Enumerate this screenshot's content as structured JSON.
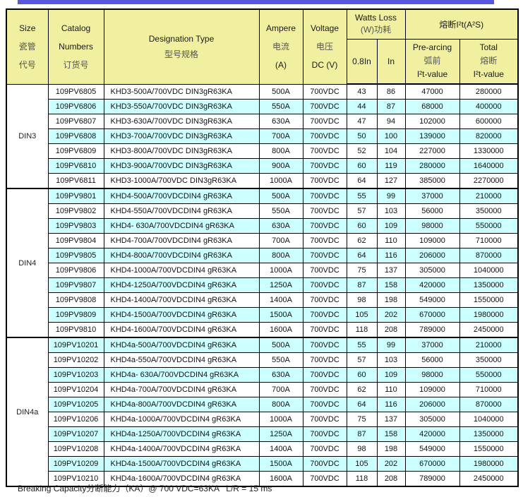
{
  "colors": {
    "accent_bar": "#5757E0",
    "header_bg": "#F0F0A0",
    "row_stripe": "#CCFFFF",
    "border": "#000000"
  },
  "header": {
    "size": [
      "Size",
      "瓷管",
      "代号"
    ],
    "catalog": [
      "Catalog",
      "Numbers",
      "订货号"
    ],
    "designation": [
      "Designation Type",
      "型号规格"
    ],
    "ampere": [
      "Ampere",
      "电流",
      "(A)"
    ],
    "voltage": [
      "Voltage",
      "电压",
      "DC (V)"
    ],
    "watts_loss": [
      "Watts Loss",
      "(W)功耗"
    ],
    "i2t_title": "熔断I²t(A²S)",
    "watts_sub": [
      "0.8In",
      "In"
    ],
    "prearcing": [
      "Pre-arcing",
      "弧前",
      "I²t-value"
    ],
    "total": [
      "Total",
      "熔断",
      "I²t-value"
    ]
  },
  "table": {
    "groups": [
      {
        "size": "DIN3",
        "rows": [
          [
            "109PV6805",
            "KHD3-500A/700VDC DIN3gR63KA",
            "500A",
            "700VDC",
            "43",
            "86",
            "47000",
            "280000"
          ],
          [
            "109PV6806",
            "KHD3-550A/700VDC DIN3gR63KA",
            "550A",
            "700VDC",
            "44",
            "87",
            "68000",
            "400000"
          ],
          [
            "109PV6807",
            "KHD3-630A/700VDC DIN3gR63KA",
            "630A",
            "700VDC",
            "47",
            "94",
            "102000",
            "600000"
          ],
          [
            "109PV6808",
            "KHD3-700A/700VDC DIN3gR63KA",
            "700A",
            "700VDC",
            "50",
            "100",
            "139000",
            "820000"
          ],
          [
            "109PV6809",
            "KHD3-800A/700VDC DIN3gR63KA",
            "800A",
            "700VDC",
            "52",
            "104",
            "227000",
            "1330000"
          ],
          [
            "109PV6810",
            "KHD3-900A/700VDC DIN3gR63KA",
            "900A",
            "700VDC",
            "60",
            "119",
            "280000",
            "1640000"
          ],
          [
            "109PV6811",
            "KHD3-1000A/700VDC DIN3gR63KA",
            "1000A",
            "700VDC",
            "64",
            "127",
            "385000",
            "2270000"
          ]
        ]
      },
      {
        "size": "DIN4",
        "rows": [
          [
            "109PV9801",
            "KHD4-500A/700VDCDIN4 gR63KA",
            "500A",
            "700VDC",
            "55",
            "99",
            "37000",
            "210000"
          ],
          [
            "109PV9802",
            "KHD4-550A/700VDCDIN4 gR63KA",
            "550A",
            "700VDC",
            "57",
            "103",
            "56000",
            "350000"
          ],
          [
            "109PV9803",
            "KHD4- 630A/700VDCDIN4 gR63KA",
            "630A",
            "700VDC",
            "60",
            "109",
            "98000",
            "550000"
          ],
          [
            "109PV9804",
            "KHD4-700A/700VDCDIN4 gR63KA",
            "700A",
            "700VDC",
            "62",
            "110",
            "109000",
            "710000"
          ],
          [
            "109PV9805",
            "KHD4-800A/700VDCDIN4 gR63KA",
            "800A",
            "700VDC",
            "64",
            "116",
            "206000",
            "870000"
          ],
          [
            "109PV9806",
            "KHD4-1000A/700VDCDIN4 gR63KA",
            "1000A",
            "700VDC",
            "75",
            "137",
            "305000",
            "1040000"
          ],
          [
            "109PV9807",
            "KHD4-1250A/700VDCDIN4 gR63KA",
            "1250A",
            "700VDC",
            "87",
            "158",
            "420000",
            "1350000"
          ],
          [
            "109PV9808",
            "KHD4-1400A/700VDCDIN4 gR63KA",
            "1400A",
            "700VDC",
            "98",
            "198",
            "549000",
            "1550000"
          ],
          [
            "109PV9809",
            "KHD4-1500A/700VDCDIN4 gR63KA",
            "1500A",
            "700VDC",
            "105",
            "202",
            "670000",
            "1980000"
          ],
          [
            "109PV9810",
            "KHD4-1600A/700VDCDIN4 gR63KA",
            "1600A",
            "700VDC",
            "118",
            "208",
            "789000",
            "2450000"
          ]
        ]
      },
      {
        "size": "DIN4a",
        "rows": [
          [
            "109PV10201",
            "KHD4a-500A/700VDCDIN4 gR63KA",
            "500A",
            "700VDC",
            "55",
            "99",
            "37000",
            "210000"
          ],
          [
            "109PV10202",
            "KHD4a-550A/700VDCDIN4 gR63KA",
            "550A",
            "700VDC",
            "57",
            "103",
            "56000",
            "350000"
          ],
          [
            "109PV10203",
            "KHD4a- 630A/700VDCDIN4 gR63KA",
            "630A",
            "700VDC",
            "60",
            "109",
            "98000",
            "550000"
          ],
          [
            "109PV10204",
            "KHD4a-700A/700VDCDIN4 gR63KA",
            "700A",
            "700VDC",
            "62",
            "110",
            "109000",
            "710000"
          ],
          [
            "109PV10205",
            "KHD4a-800A/700VDCDIN4 gR63KA",
            "800A",
            "700VDC",
            "64",
            "116",
            "206000",
            "870000"
          ],
          [
            "109PV10206",
            "KHD4a-1000A/700VDCDIN4 gR63KA",
            "1000A",
            "700VDC",
            "75",
            "137",
            "305000",
            "1040000"
          ],
          [
            "109PV10207",
            "KHD4a-1250A/700VDCDIN4 gR63KA",
            "1250A",
            "700VDC",
            "87",
            "158",
            "420000",
            "1350000"
          ],
          [
            "109PV10208",
            "KHD4a-1400A/700VDCDIN4 gR63KA",
            "1400A",
            "700VDC",
            "98",
            "198",
            "549000",
            "1550000"
          ],
          [
            "109PV10209",
            "KHD4a-1500A/700VDCDIN4 gR63KA",
            "1500A",
            "700VDC",
            "105",
            "202",
            "670000",
            "1980000"
          ],
          [
            "109PV10210",
            "KHD4a-1600A/700VDCDIN4 gR63KA",
            "1600A",
            "700VDC",
            "118",
            "208",
            "789000",
            "2450000"
          ]
        ]
      }
    ]
  },
  "footer": {
    "text": "Breaking Capacity分断能力（KA）@ 700 VDC=63KA   L/R = 15 ms"
  }
}
